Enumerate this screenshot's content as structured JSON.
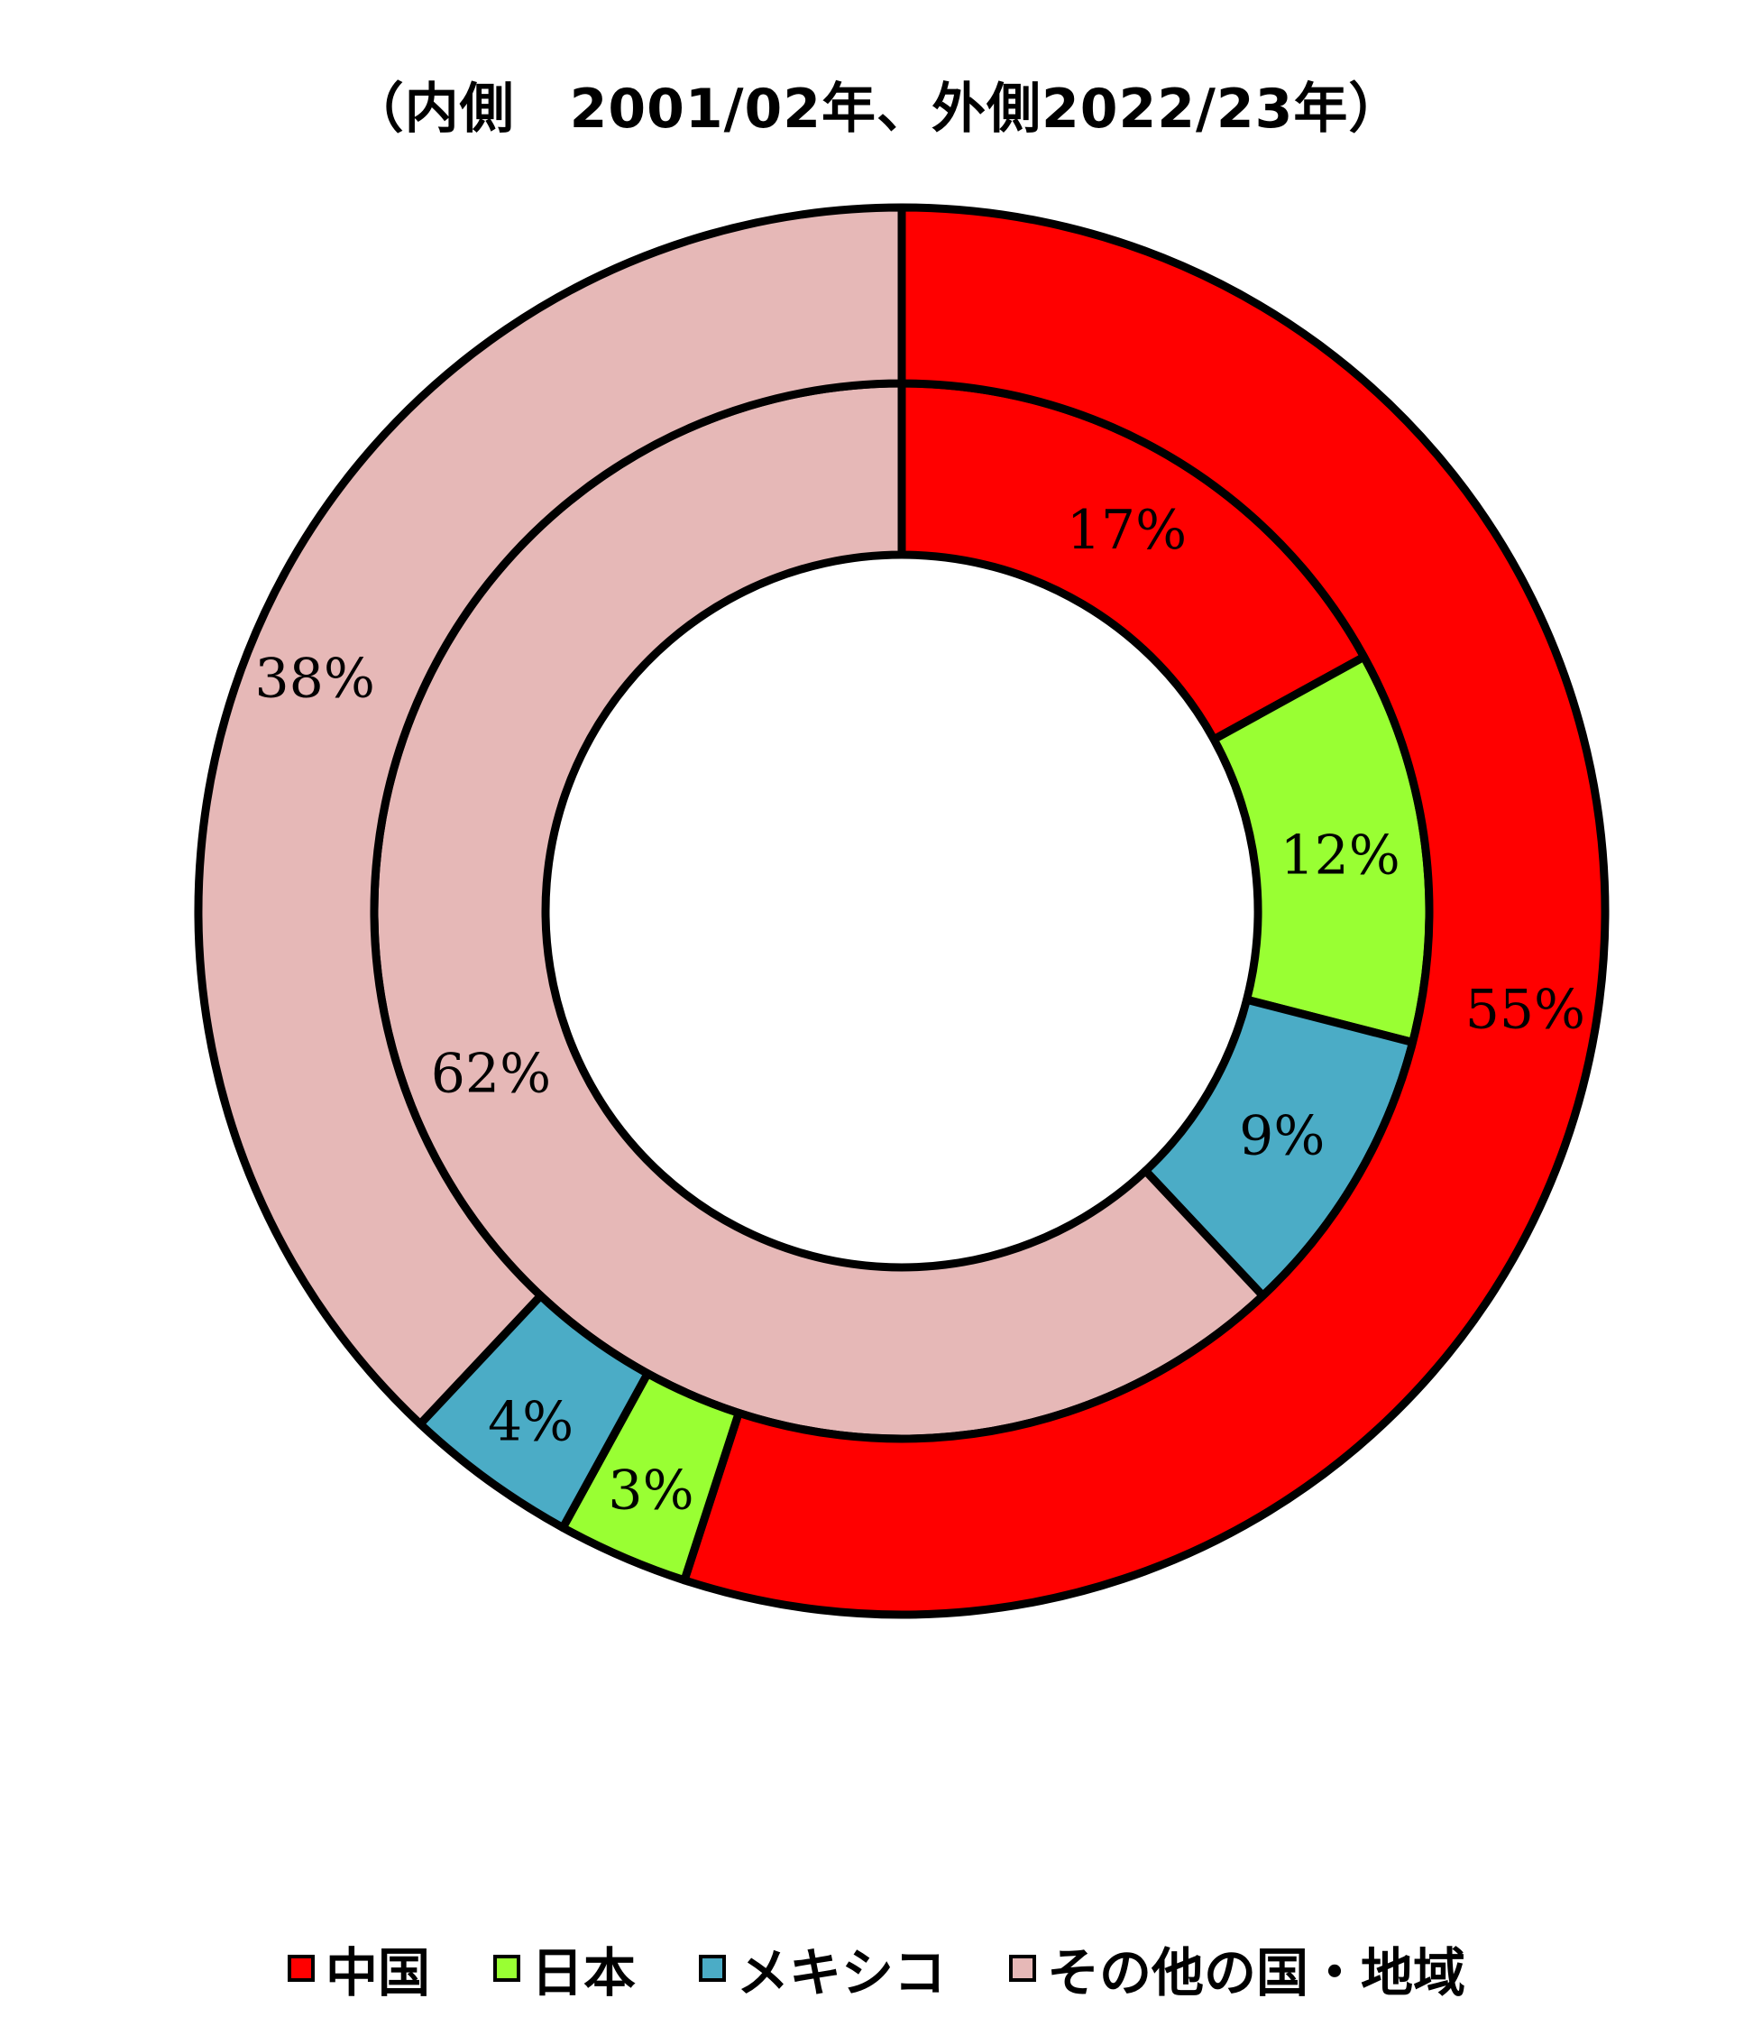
{
  "chart_data": {
    "type": "doughnut",
    "title": "（内側　2001/02年、外側2022/23年）",
    "categories": [
      "中国",
      "日本",
      "メキシコ",
      "その他の国・地域"
    ],
    "colors": [
      "#ff0000",
      "#99ff33",
      "#4bacc6",
      "#e6b8b7"
    ],
    "series": [
      {
        "values": [
          17,
          12,
          9,
          62
        ],
        "labels": [
          "17%",
          "12%",
          "9%",
          "62%"
        ]
      },
      {
        "values": [
          55,
          3,
          4,
          38
        ],
        "labels": [
          "55%",
          "3%",
          "4%",
          "38%"
        ]
      }
    ],
    "legend_position": "bottom"
  }
}
